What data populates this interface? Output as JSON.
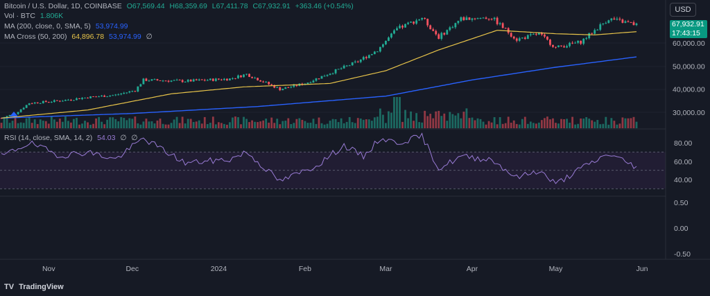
{
  "header": {
    "symbol": "Bitcoin / U.S. Dollar, 1D, COINBASE",
    "open": "O67,569.44",
    "high": "H68,359.69",
    "low": "L67,411.78",
    "close": "C67,932.91",
    "change": "+363.46 (+0.54%)",
    "vol_label": "Vol · BTC",
    "vol_value": "1.806K",
    "ma200_label": "MA (200, close, 0, SMA, 5)",
    "ma200_value": "53,974.99",
    "macross_label": "MA Cross (50, 200)",
    "macross_fast": "64,896.78",
    "macross_slow": "53,974.99",
    "null_symbol": "∅",
    "rsi_label": "RSI (14, close, SMA, 14, 2)",
    "rsi_value": "54.03",
    "rsi_null1": "∅",
    "rsi_null2": "∅"
  },
  "toolbar": {
    "currency": "USD"
  },
  "price_tag": {
    "price": "67,932.91",
    "countdown": "17:43:15"
  },
  "brand": {
    "name": "TradingView",
    "logo": "TV"
  },
  "colors": {
    "background": "#161a25",
    "up": "#22ab94",
    "down": "#f7525f",
    "ma50": "#e8c44a",
    "ma200": "#2962ff",
    "rsi": "#9a7cd6",
    "rsi_band": "#2a1f3d"
  },
  "chart_data": [
    {
      "type": "candlestick",
      "title": "Bitcoin / U.S. Dollar, 1D, COINBASE",
      "x_labels": [
        "Nov",
        "Dec",
        "2024",
        "Feb",
        "Mar",
        "Apr",
        "May",
        "Jun"
      ],
      "y_ticks": [
        "60,000.00",
        "50,000.00",
        "40,000.00",
        "30,000.00"
      ],
      "ylim": [
        25000,
        71000
      ],
      "start_date": "2023-10-15",
      "end_date": "2024-05-30",
      "keypoints_close": [
        [
          "2023-10-15",
          27500
        ],
        [
          "2023-10-20",
          29500
        ],
        [
          "2023-10-25",
          34000
        ],
        [
          "2023-11-05",
          35000
        ],
        [
          "2023-11-15",
          36500
        ],
        [
          "2023-11-25",
          37500
        ],
        [
          "2023-12-02",
          39500
        ],
        [
          "2023-12-05",
          44000
        ],
        [
          "2023-12-20",
          43500
        ],
        [
          "2024-01-05",
          44500
        ],
        [
          "2024-01-11",
          46500
        ],
        [
          "2024-01-23",
          40000
        ],
        [
          "2024-02-01",
          42500
        ],
        [
          "2024-02-10",
          47000
        ],
        [
          "2024-02-20",
          52000
        ],
        [
          "2024-02-27",
          57000
        ],
        [
          "2024-03-05",
          66000
        ],
        [
          "2024-03-14",
          71000
        ],
        [
          "2024-03-20",
          62500
        ],
        [
          "2024-03-28",
          70500
        ],
        [
          "2024-04-08",
          71000
        ],
        [
          "2024-04-17",
          61500
        ],
        [
          "2024-04-25",
          64000
        ],
        [
          "2024-05-01",
          58000
        ],
        [
          "2024-05-10",
          60500
        ],
        [
          "2024-05-20",
          70500
        ],
        [
          "2024-05-30",
          67932
        ]
      ],
      "ma50_keypoints": [
        [
          "2023-10-15",
          27500
        ],
        [
          "2023-11-15",
          31000
        ],
        [
          "2023-12-15",
          38000
        ],
        [
          "2024-01-10",
          41000
        ],
        [
          "2024-02-10",
          42500
        ],
        [
          "2024-03-01",
          48000
        ],
        [
          "2024-03-20",
          57000
        ],
        [
          "2024-04-10",
          65500
        ],
        [
          "2024-05-01",
          64000
        ],
        [
          "2024-05-15",
          63500
        ],
        [
          "2024-05-30",
          64897
        ]
      ],
      "ma200_keypoints": [
        [
          "2023-10-15",
          27500
        ],
        [
          "2023-12-01",
          29500
        ],
        [
          "2024-01-15",
          32500
        ],
        [
          "2024-03-01",
          37000
        ],
        [
          "2024-04-01",
          44000
        ],
        [
          "2024-05-01",
          49500
        ],
        [
          "2024-05-30",
          53975
        ]
      ]
    },
    {
      "type": "line",
      "title": "RSI (14, close, SMA, 14, 2)",
      "y_ticks": [
        80,
        60,
        40,
        0.5,
        0.0,
        -0.5
      ],
      "ylim_rsi": [
        25,
        90
      ],
      "band": [
        30,
        70
      ],
      "midline": 50,
      "keypoints": [
        [
          "2023-10-15",
          65
        ],
        [
          "2023-10-25",
          80
        ],
        [
          "2023-11-05",
          66
        ],
        [
          "2023-11-15",
          70
        ],
        [
          "2023-11-25",
          62
        ],
        [
          "2023-12-05",
          85
        ],
        [
          "2023-12-20",
          58
        ],
        [
          "2024-01-05",
          62
        ],
        [
          "2024-01-11",
          70
        ],
        [
          "2024-01-23",
          38
        ],
        [
          "2024-02-05",
          55
        ],
        [
          "2024-02-15",
          77
        ],
        [
          "2024-02-22",
          65
        ],
        [
          "2024-02-28",
          85
        ],
        [
          "2024-03-05",
          80
        ],
        [
          "2024-03-14",
          87
        ],
        [
          "2024-03-20",
          52
        ],
        [
          "2024-03-28",
          65
        ],
        [
          "2024-04-08",
          62
        ],
        [
          "2024-04-17",
          42
        ],
        [
          "2024-04-25",
          50
        ],
        [
          "2024-05-01",
          35
        ],
        [
          "2024-05-10",
          52
        ],
        [
          "2024-05-20",
          68
        ],
        [
          "2024-05-30",
          54
        ]
      ],
      "last_value": 54.03
    }
  ]
}
